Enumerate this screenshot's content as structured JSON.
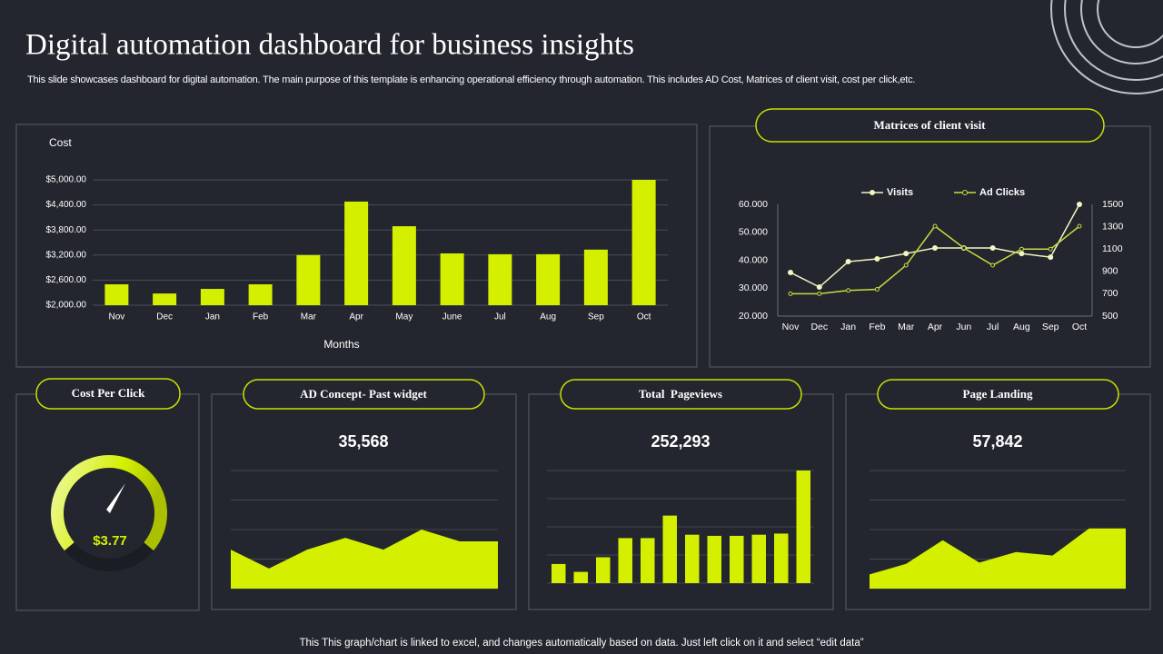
{
  "title": "Digital automation dashboard for business insights",
  "subtitle": "This slide showcases dashboard for digital automation. The main purpose of this template is enhancing operational efficiency through automation. This includes AD Cost, Matrices of client visit, cost per click,etc.",
  "footer": "This This graph/chart is linked to excel,  and changes automatically based on data. Just left click on it and select “edit data”",
  "chart_data": [
    {
      "type": "bar",
      "ylabel": "Cost",
      "xlabel": "Months",
      "color": "#d4f000",
      "grid": true,
      "categories": [
        "Nov",
        "Dec",
        "Jan",
        "Feb",
        "Mar",
        "Apr",
        "May",
        "June",
        "Jul",
        "Aug",
        "Sep",
        "Oct"
      ],
      "values": [
        2500,
        2280,
        2390,
        2500,
        3200,
        4480,
        3890,
        3240,
        3220,
        3220,
        3330,
        5000
      ],
      "ylim": [
        2000,
        5000
      ],
      "yticks": [
        {
          "value": 2000,
          "label": "$2,000.00"
        },
        {
          "value": 2600,
          "label": "$2,600.00"
        },
        {
          "value": 3200,
          "label": "$3,200.00"
        },
        {
          "value": 3800,
          "label": "$3,800.00"
        },
        {
          "value": 4400,
          "label": "$4,400.00"
        },
        {
          "value": 5000,
          "label": "$5,000.00"
        }
      ]
    },
    {
      "type": "line",
      "title": "Matrices of client visit",
      "legend": "top",
      "categories": [
        "Nov",
        "Dec",
        "Jan",
        "Feb",
        "Mar",
        "Apr",
        "Jun",
        "Jul",
        "Aug",
        "Sep",
        "Oct"
      ],
      "series": [
        {
          "name": "Visits",
          "color": "#f2f6c0",
          "values": [
            35.6,
            30.4,
            39.5,
            40.5,
            42.4,
            44.4,
            44.4,
            44.4,
            42.4,
            41.1,
            60
          ]
        },
        {
          "name": "Ad Clicks",
          "color": "#c8dc40",
          "axis": "y2",
          "values": [
            700,
            700,
            730,
            740,
            955,
            1305,
            1110,
            955,
            1100,
            1100,
            1305
          ]
        }
      ],
      "ylim": [
        20,
        60
      ],
      "yticks": [
        {
          "value": 20,
          "label": "20.000"
        },
        {
          "value": 30,
          "label": "30.000"
        },
        {
          "value": 40,
          "label": "40.000"
        },
        {
          "value": 50,
          "label": "50.000"
        },
        {
          "value": 60,
          "label": "60.000"
        }
      ],
      "y2lim": [
        500,
        1500
      ],
      "y2ticks": [
        500,
        700,
        900,
        1100,
        1300,
        1500
      ]
    },
    {
      "type": "gauge",
      "title": "Cost Per Click",
      "value": 3.77,
      "value_label": "$3.77"
    },
    {
      "type": "area",
      "title": "AD Concept- Past widget",
      "total": 35568,
      "total_label": "35,568",
      "color": "#d4f000",
      "values": [
        33,
        17,
        33,
        43,
        33,
        50,
        40,
        40
      ],
      "ylim": [
        0,
        100
      ],
      "yticks": [
        0,
        25,
        50,
        75,
        100
      ],
      "grid": true
    },
    {
      "type": "bar",
      "title": "Total  Pageviews",
      "total": 252293,
      "total_label": "252,293",
      "color": "#d4f000",
      "values": [
        17,
        10,
        23,
        40,
        40,
        60,
        43,
        42,
        42,
        43,
        44,
        100
      ],
      "ylim": [
        0,
        100
      ],
      "yticks": [
        0,
        25,
        50,
        75,
        100
      ],
      "grid": true
    },
    {
      "type": "area",
      "title": "Page Landing",
      "total": 57842,
      "total_label": "57,842",
      "color": "#d4f000",
      "values": [
        12,
        21,
        41,
        22,
        31,
        28,
        51,
        51
      ],
      "ylim": [
        0,
        100
      ],
      "yticks": [
        0,
        25,
        50,
        75,
        100
      ],
      "grid": true
    }
  ]
}
